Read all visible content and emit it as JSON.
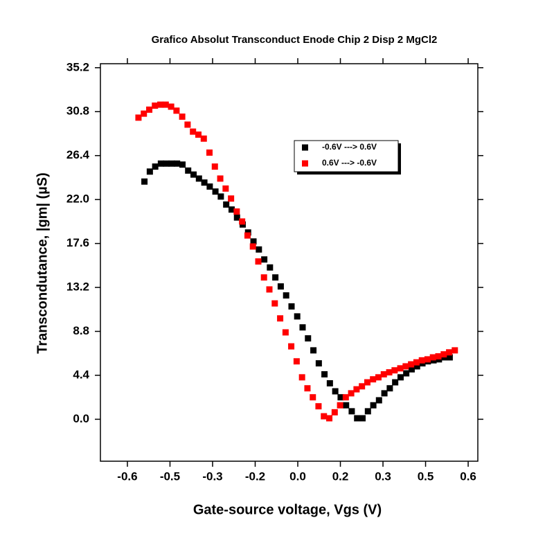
{
  "chart_data": {
    "type": "scatter",
    "title": "Grafico Absolut Transconduct Enode Chip 2 Disp 2 MgCl2",
    "x_label": "Gate-source voltage, Vgs (V)",
    "y_label": "Transcondutance, |gm| (µS)",
    "xlim": [
      -0.695,
      0.634
    ],
    "ylim": [
      -4.2,
      35.6
    ],
    "xticks": [
      -0.6,
      {
        "value": -0.45,
        "label": "-0.5"
      },
      -0.3,
      {
        "value": -0.15,
        "label": "-0.2"
      },
      {
        "value": 0,
        "label": "0.0"
      },
      {
        "value": 0.15,
        "label": "0.2"
      },
      0.3,
      {
        "value": 0.45,
        "label": "0.5"
      },
      0.6
    ],
    "yticks": [
      {
        "value": 0,
        "label": "0.0"
      },
      4.4,
      8.8,
      13.2,
      17.6,
      {
        "value": 22,
        "label": "22.0"
      },
      26.4,
      30.8,
      35.2
    ],
    "grid": false,
    "legend": "upper right",
    "series": [
      {
        "name": "-0.6V ---> 0.6V",
        "color": "#000000",
        "x": [
          -0.54,
          -0.521,
          -0.502,
          -0.482,
          -0.463,
          -0.444,
          -0.425,
          -0.406,
          -0.386,
          -0.367,
          -0.348,
          -0.329,
          -0.31,
          -0.29,
          -0.271,
          -0.252,
          -0.233,
          -0.214,
          -0.194,
          -0.175,
          -0.156,
          -0.137,
          -0.118,
          -0.098,
          -0.079,
          -0.06,
          -0.041,
          -0.022,
          -0.002,
          0.017,
          0.036,
          0.055,
          0.074,
          0.094,
          0.113,
          0.132,
          0.151,
          0.17,
          0.19,
          0.209,
          0.228,
          0.247,
          0.266,
          0.286,
          0.305,
          0.324,
          0.343,
          0.362,
          0.382,
          0.401,
          0.42,
          0.439,
          0.458,
          0.478,
          0.497,
          0.516,
          0.535
        ],
        "values": [
          23.8,
          24.8,
          25.3,
          25.6,
          25.6,
          25.6,
          25.6,
          25.5,
          24.9,
          24.5,
          24.1,
          23.7,
          23.3,
          22.8,
          22.3,
          21.5,
          21.0,
          20.2,
          19.5,
          18.7,
          17.8,
          17.0,
          16.0,
          15.2,
          14.2,
          13.3,
          12.4,
          11.3,
          10.3,
          9.2,
          8.1,
          6.9,
          5.6,
          4.5,
          3.6,
          2.8,
          2.2,
          1.4,
          0.8,
          0.1,
          0.1,
          0.8,
          1.4,
          1.9,
          2.6,
          3.1,
          3.7,
          4.2,
          4.6,
          5.0,
          5.3,
          5.6,
          5.8,
          5.9,
          6.0,
          6.2,
          6.2
        ]
      },
      {
        "name": "0.6V ---> -0.6V",
        "color": "#ff0000",
        "x": [
          -0.561,
          -0.542,
          -0.523,
          -0.503,
          -0.484,
          -0.465,
          -0.446,
          -0.427,
          -0.407,
          -0.388,
          -0.369,
          -0.35,
          -0.331,
          -0.311,
          -0.292,
          -0.273,
          -0.254,
          -0.235,
          -0.215,
          -0.196,
          -0.177,
          -0.158,
          -0.139,
          -0.119,
          -0.1,
          -0.081,
          -0.062,
          -0.043,
          -0.023,
          -0.004,
          0.015,
          0.034,
          0.053,
          0.073,
          0.092,
          0.111,
          0.13,
          0.149,
          0.169,
          0.188,
          0.207,
          0.226,
          0.245,
          0.265,
          0.284,
          0.303,
          0.322,
          0.341,
          0.361,
          0.38,
          0.399,
          0.418,
          0.437,
          0.457,
          0.476,
          0.495,
          0.514,
          0.533,
          0.553
        ],
        "values": [
          30.2,
          30.6,
          31.0,
          31.4,
          31.5,
          31.5,
          31.3,
          30.9,
          30.3,
          29.5,
          28.8,
          28.5,
          28.1,
          26.7,
          25.3,
          24.1,
          23.1,
          22.1,
          20.8,
          19.8,
          18.4,
          17.3,
          15.8,
          14.2,
          13.0,
          11.6,
          10.1,
          8.7,
          7.3,
          5.8,
          4.2,
          3.1,
          2.2,
          1.3,
          0.3,
          0.1,
          0.7,
          1.4,
          2.2,
          2.6,
          3.0,
          3.3,
          3.7,
          4.0,
          4.2,
          4.5,
          4.7,
          4.9,
          5.1,
          5.3,
          5.5,
          5.7,
          5.9,
          6.0,
          6.2,
          6.3,
          6.5,
          6.7,
          6.9
        ]
      }
    ]
  }
}
